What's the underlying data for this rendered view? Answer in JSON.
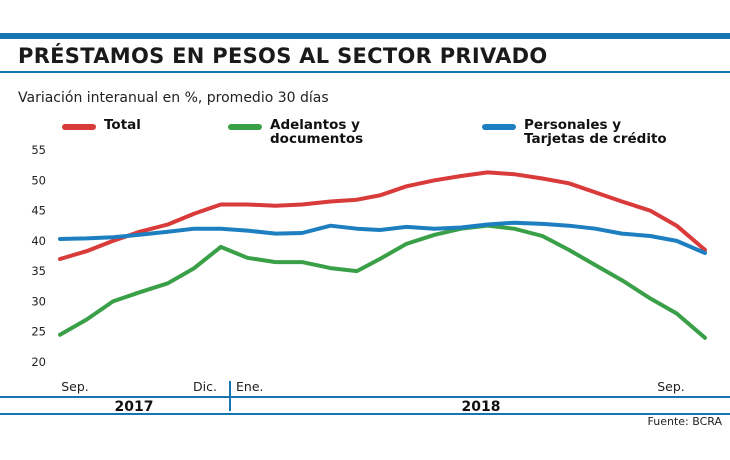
{
  "title": "PRÉSTAMOS EN PESOS AL SECTOR PRIVADO",
  "source": "Fuente: BCRA",
  "chart_data": {
    "type": "line",
    "title": "PRÉSTAMOS EN PESOS AL SECTOR PRIVADO",
    "subtitle": "Variación interanual en %, promedio 30 días",
    "ylim": [
      20,
      55
    ],
    "yticks": [
      "55",
      "50",
      "45",
      "40",
      "35",
      "30",
      "25",
      "20"
    ],
    "xtick_labels": [
      "Sep.",
      "Dic.",
      "Ene.",
      "Sep."
    ],
    "year_labels": [
      "2017",
      "2018"
    ],
    "grid": false,
    "legend": "top",
    "x": [
      "2017-09-01",
      "2017-09-16",
      "2017-10-01",
      "2017-10-16",
      "2017-11-01",
      "2017-11-16",
      "2017-12-01",
      "2017-12-16",
      "2018-01-01",
      "2018-01-16",
      "2018-02-01",
      "2018-02-16",
      "2018-03-01",
      "2018-03-16",
      "2018-04-01",
      "2018-04-16",
      "2018-05-01",
      "2018-05-16",
      "2018-06-01",
      "2018-06-16",
      "2018-07-01",
      "2018-07-16",
      "2018-08-01",
      "2018-08-16",
      "2018-09-01"
    ],
    "series": [
      {
        "name": "Total",
        "color": "#d93a3a",
        "values": [
          37,
          38.3,
          40,
          41.5,
          42.7,
          44.5,
          46,
          46,
          45.8,
          46,
          46.5,
          46.8,
          47.5,
          49,
          50,
          50.7,
          51.3,
          51,
          50.3,
          49.5,
          48,
          46.5,
          45,
          42.5,
          38.5
        ]
      },
      {
        "name": "Adelantos y\ndocumentos",
        "color": "#3aa048",
        "values": [
          24.5,
          27,
          30,
          31.5,
          33,
          35.5,
          39,
          37.2,
          36.5,
          36.5,
          35.5,
          35,
          37,
          39.5,
          41,
          42,
          42.5,
          42,
          40.8,
          38.5,
          36,
          33.5,
          30.5,
          28,
          24
        ]
      },
      {
        "name": "Personales y\nTarjetas de crédito",
        "color": "#1d7fc0",
        "values": [
          40.3,
          40.4,
          40.6,
          41,
          41.5,
          42,
          42,
          41.7,
          41.2,
          41.3,
          42.5,
          42,
          41.8,
          42.3,
          42,
          42.2,
          42.7,
          43,
          42.8,
          42.5,
          42,
          41.2,
          40.8,
          40,
          38
        ]
      }
    ]
  }
}
